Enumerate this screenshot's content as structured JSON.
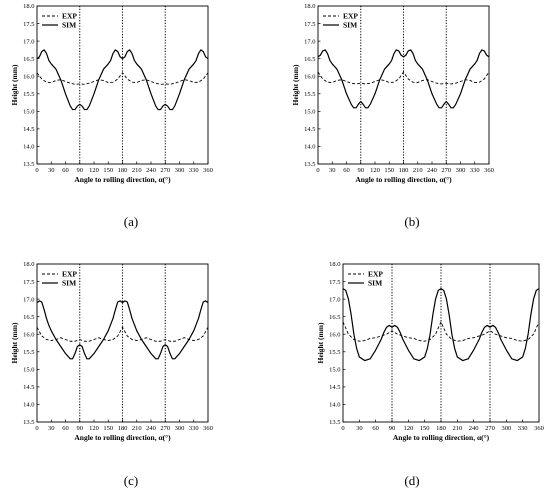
{
  "chart_data": [
    {
      "type": "line",
      "caption": "(a)",
      "xlabel": "Angle to rolling direction, α(°)",
      "ylabel": "Height (mm)",
      "xlim": [
        0,
        360
      ],
      "ylim": [
        13.5,
        18.0
      ],
      "xticks": [
        "0",
        "30",
        "60",
        "90",
        "120",
        "150",
        "180",
        "210",
        "240",
        "270",
        "300",
        "330",
        "360"
      ],
      "yticks": [
        "13.5",
        "14.0",
        "14.5",
        "15.0",
        "15.5",
        "16.0",
        "16.5",
        "17.0",
        "17.5",
        "18.0"
      ],
      "vlines": [
        90,
        180,
        270
      ],
      "legend_position": "top-left",
      "series": [
        {
          "name": "EXP",
          "style": "dashed",
          "x": [
            0,
            10,
            20,
            30,
            40,
            50,
            60,
            70,
            80,
            90,
            100,
            110,
            120,
            130,
            140,
            150,
            160,
            170,
            180,
            190,
            200,
            210,
            220,
            230,
            240,
            250,
            260,
            270,
            280,
            290,
            300,
            310,
            320,
            330,
            340,
            350,
            360
          ],
          "y": [
            16.1,
            15.92,
            15.83,
            15.82,
            15.88,
            15.9,
            15.85,
            15.8,
            15.77,
            15.78,
            15.77,
            15.8,
            15.85,
            15.9,
            15.88,
            15.82,
            15.83,
            15.92,
            16.1,
            15.92,
            15.83,
            15.82,
            15.88,
            15.9,
            15.85,
            15.8,
            15.77,
            15.78,
            15.77,
            15.8,
            15.85,
            15.9,
            15.88,
            15.82,
            15.83,
            15.92,
            16.1
          ]
        },
        {
          "name": "SIM",
          "style": "solid",
          "x": [
            0,
            5,
            10,
            15,
            20,
            25,
            30,
            40,
            50,
            60,
            70,
            75,
            80,
            85,
            90,
            95,
            100,
            105,
            110,
            120,
            130,
            140,
            150,
            155,
            160,
            165,
            170,
            175,
            180,
            185,
            190,
            195,
            200,
            205,
            210,
            220,
            230,
            240,
            250,
            255,
            260,
            265,
            270,
            275,
            280,
            285,
            290,
            300,
            310,
            320,
            330,
            335,
            340,
            345,
            350,
            355,
            360
          ],
          "y": [
            16.5,
            16.55,
            16.7,
            16.75,
            16.65,
            16.45,
            16.35,
            16.2,
            15.9,
            15.5,
            15.15,
            15.05,
            15.05,
            15.15,
            15.2,
            15.15,
            15.05,
            15.05,
            15.15,
            15.5,
            15.9,
            16.2,
            16.35,
            16.45,
            16.65,
            16.75,
            16.7,
            16.55,
            16.5,
            16.55,
            16.7,
            16.75,
            16.65,
            16.45,
            16.35,
            16.2,
            15.9,
            15.5,
            15.15,
            15.05,
            15.05,
            15.15,
            15.2,
            15.15,
            15.05,
            15.05,
            15.15,
            15.5,
            15.9,
            16.2,
            16.35,
            16.45,
            16.65,
            16.75,
            16.7,
            16.55,
            16.5
          ]
        }
      ]
    },
    {
      "type": "line",
      "caption": "(b)",
      "xlabel": "Angle to rolling direction, α(°)",
      "ylabel": "Height (mm)",
      "xlim": [
        0,
        360
      ],
      "ylim": [
        13.5,
        18.0
      ],
      "xticks": [
        "0",
        "30",
        "60",
        "90",
        "120",
        "150",
        "180",
        "210",
        "240",
        "270",
        "300",
        "330",
        "360"
      ],
      "yticks": [
        "13.5",
        "14.0",
        "14.5",
        "15.0",
        "15.5",
        "16.0",
        "16.5",
        "17.0",
        "17.5",
        "18.0"
      ],
      "vlines": [
        90,
        180,
        270
      ],
      "legend_position": "top-left",
      "series": [
        {
          "name": "EXP",
          "style": "dashed",
          "x": [
            0,
            10,
            20,
            30,
            40,
            50,
            60,
            70,
            80,
            90,
            100,
            110,
            120,
            130,
            140,
            150,
            160,
            170,
            180,
            190,
            200,
            210,
            220,
            230,
            240,
            250,
            260,
            270,
            280,
            290,
            300,
            310,
            320,
            330,
            340,
            350,
            360
          ],
          "y": [
            16.12,
            15.92,
            15.83,
            15.82,
            15.88,
            15.9,
            15.85,
            15.8,
            15.78,
            15.8,
            15.78,
            15.8,
            15.85,
            15.9,
            15.88,
            15.82,
            15.83,
            15.92,
            16.12,
            15.92,
            15.83,
            15.82,
            15.88,
            15.9,
            15.85,
            15.8,
            15.78,
            15.8,
            15.78,
            15.8,
            15.85,
            15.9,
            15.88,
            15.82,
            15.83,
            15.92,
            16.12
          ]
        },
        {
          "name": "SIM",
          "style": "solid",
          "x": [
            0,
            5,
            10,
            15,
            20,
            25,
            30,
            40,
            50,
            60,
            70,
            75,
            80,
            85,
            90,
            95,
            100,
            105,
            110,
            120,
            130,
            140,
            150,
            155,
            160,
            165,
            170,
            175,
            180,
            185,
            190,
            195,
            200,
            205,
            210,
            220,
            230,
            240,
            250,
            255,
            260,
            265,
            270,
            275,
            280,
            285,
            290,
            300,
            310,
            320,
            330,
            335,
            340,
            345,
            350,
            355,
            360
          ],
          "y": [
            16.55,
            16.6,
            16.72,
            16.75,
            16.65,
            16.45,
            16.35,
            16.2,
            15.9,
            15.5,
            15.2,
            15.1,
            15.1,
            15.2,
            15.28,
            15.2,
            15.1,
            15.1,
            15.2,
            15.5,
            15.9,
            16.2,
            16.35,
            16.45,
            16.65,
            16.75,
            16.72,
            16.6,
            16.55,
            16.6,
            16.72,
            16.75,
            16.65,
            16.45,
            16.35,
            16.2,
            15.9,
            15.5,
            15.2,
            15.1,
            15.1,
            15.2,
            15.28,
            15.2,
            15.1,
            15.1,
            15.2,
            15.5,
            15.9,
            16.2,
            16.35,
            16.45,
            16.65,
            16.75,
            16.72,
            16.6,
            16.55
          ]
        }
      ]
    },
    {
      "type": "line",
      "caption": "(c)",
      "xlabel": "Angle to rolling direction, α(°)",
      "ylabel": "Height (mm)",
      "xlim": [
        0,
        360
      ],
      "ylim": [
        13.5,
        18.0
      ],
      "xticks": [
        "0",
        "30",
        "60",
        "90",
        "120",
        "150",
        "180",
        "210",
        "240",
        "270",
        "300",
        "330",
        "360"
      ],
      "yticks": [
        "13.5",
        "14.0",
        "14.5",
        "15.0",
        "15.5",
        "16.0",
        "16.5",
        "17.0",
        "17.5",
        "18.0"
      ],
      "vlines": [
        90,
        180,
        270
      ],
      "legend_position": "top-left",
      "series": [
        {
          "name": "EXP",
          "style": "dashed",
          "x": [
            0,
            10,
            20,
            30,
            40,
            50,
            60,
            70,
            80,
            90,
            100,
            110,
            120,
            130,
            140,
            150,
            160,
            170,
            180,
            190,
            200,
            210,
            220,
            230,
            240,
            250,
            260,
            270,
            280,
            290,
            300,
            310,
            320,
            330,
            340,
            350,
            360
          ],
          "y": [
            16.2,
            15.95,
            15.85,
            15.82,
            15.85,
            15.9,
            15.85,
            15.8,
            15.8,
            15.85,
            15.8,
            15.8,
            15.85,
            15.9,
            15.85,
            15.82,
            15.85,
            15.95,
            16.2,
            15.95,
            15.85,
            15.82,
            15.85,
            15.9,
            15.85,
            15.8,
            15.8,
            15.85,
            15.8,
            15.8,
            15.85,
            15.9,
            15.85,
            15.82,
            15.85,
            15.95,
            16.2
          ]
        },
        {
          "name": "SIM",
          "style": "solid",
          "x": [
            0,
            5,
            10,
            15,
            20,
            25,
            30,
            40,
            50,
            60,
            70,
            75,
            80,
            85,
            90,
            95,
            100,
            105,
            110,
            120,
            130,
            140,
            150,
            160,
            165,
            170,
            175,
            180,
            185,
            190,
            195,
            200,
            210,
            220,
            230,
            240,
            250,
            255,
            260,
            265,
            270,
            275,
            280,
            285,
            290,
            300,
            310,
            320,
            330,
            340,
            345,
            350,
            355,
            360
          ],
          "y": [
            16.9,
            16.95,
            16.92,
            16.7,
            16.45,
            16.25,
            16.1,
            15.85,
            15.65,
            15.45,
            15.3,
            15.3,
            15.45,
            15.65,
            15.7,
            15.65,
            15.45,
            15.3,
            15.3,
            15.45,
            15.65,
            15.85,
            16.1,
            16.45,
            16.7,
            16.92,
            16.95,
            16.9,
            16.95,
            16.92,
            16.7,
            16.45,
            16.1,
            15.85,
            15.65,
            15.45,
            15.3,
            15.3,
            15.45,
            15.65,
            15.7,
            15.65,
            15.45,
            15.3,
            15.3,
            15.45,
            15.65,
            15.85,
            16.1,
            16.45,
            16.7,
            16.92,
            16.95,
            16.9
          ]
        }
      ]
    },
    {
      "type": "line",
      "caption": "(d)",
      "xlabel": "Angle to rolling direction, α(°)",
      "ylabel": "Height (mm)",
      "xlim": [
        0,
        360
      ],
      "ylim": [
        13.5,
        18.0
      ],
      "xticks": [
        "0",
        "30",
        "60",
        "90",
        "120",
        "150",
        "180",
        "210",
        "240",
        "270",
        "300",
        "330",
        "360"
      ],
      "yticks": [
        "13.5",
        "14.0",
        "14.5",
        "15.0",
        "15.5",
        "16.0",
        "16.5",
        "17.0",
        "17.5",
        "18.0"
      ],
      "vlines": [
        90,
        180,
        270
      ],
      "legend_position": "top-left",
      "series": [
        {
          "name": "EXP",
          "style": "dashed",
          "x": [
            0,
            10,
            20,
            30,
            40,
            50,
            60,
            70,
            80,
            90,
            100,
            110,
            120,
            130,
            140,
            150,
            160,
            170,
            180,
            190,
            200,
            210,
            220,
            230,
            240,
            250,
            260,
            270,
            280,
            290,
            300,
            310,
            320,
            330,
            340,
            350,
            360
          ],
          "y": [
            16.35,
            16.0,
            15.85,
            15.8,
            15.82,
            15.88,
            15.9,
            15.95,
            16.0,
            16.1,
            16.0,
            15.95,
            15.9,
            15.88,
            15.82,
            15.8,
            15.85,
            16.0,
            16.35,
            16.0,
            15.85,
            15.8,
            15.82,
            15.88,
            15.9,
            15.95,
            16.0,
            16.1,
            16.0,
            15.95,
            15.9,
            15.88,
            15.82,
            15.8,
            15.85,
            16.0,
            16.35
          ]
        },
        {
          "name": "SIM",
          "style": "solid",
          "x": [
            0,
            5,
            10,
            15,
            20,
            25,
            30,
            40,
            50,
            60,
            70,
            75,
            80,
            85,
            90,
            95,
            100,
            105,
            110,
            120,
            130,
            140,
            150,
            155,
            160,
            165,
            170,
            175,
            180,
            185,
            190,
            195,
            200,
            205,
            210,
            220,
            230,
            240,
            250,
            255,
            260,
            265,
            270,
            275,
            280,
            285,
            290,
            300,
            310,
            320,
            330,
            335,
            340,
            345,
            350,
            355,
            360
          ],
          "y": [
            17.3,
            17.25,
            17.0,
            16.55,
            16.0,
            15.6,
            15.35,
            15.25,
            15.3,
            15.55,
            15.85,
            16.05,
            16.2,
            16.25,
            16.2,
            16.25,
            16.2,
            16.05,
            15.85,
            15.55,
            15.3,
            15.25,
            15.35,
            15.6,
            16.0,
            16.55,
            17.0,
            17.25,
            17.3,
            17.25,
            17.0,
            16.55,
            16.0,
            15.6,
            15.35,
            15.25,
            15.3,
            15.55,
            15.85,
            16.05,
            16.2,
            16.25,
            16.2,
            16.25,
            16.2,
            16.05,
            15.85,
            15.55,
            15.3,
            15.25,
            15.35,
            15.6,
            16.0,
            16.55,
            17.0,
            17.25,
            17.3
          ]
        }
      ]
    }
  ]
}
